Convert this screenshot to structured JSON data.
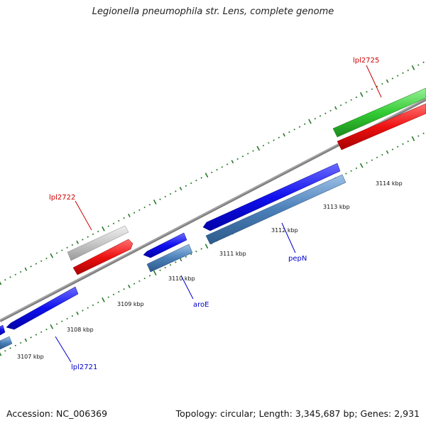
{
  "title": "Legionella pneumophila str. Lens, complete genome",
  "footer": {
    "accession": "Accession: NC_006369",
    "topology": "Topology: circular; Length: 3,345,687 bp; Genes: 2,931"
  },
  "colors": {
    "backbone": "#8a8a8a",
    "forward_cds": "#1010ee",
    "reverse_cds": "#4a7fb8",
    "red_gene": "#ee1111",
    "gray_gene": "#c8c8c8",
    "green_gene": "#33cc33",
    "tick": "#2a7a2a",
    "label_red": "#cc0000",
    "label_blue": "#0000cc"
  },
  "kbp_labels": [
    "3107 kbp",
    "3108 kbp",
    "3109 kbp",
    "3110 kbp",
    "3111 kbp",
    "3112 kbp",
    "3113 kbp",
    "3114 kbp"
  ],
  "gene_labels": [
    {
      "id": "lbl-lpl2725",
      "text": "lpl2725",
      "color": "red"
    },
    {
      "id": "lbl-lpl2722",
      "text": "lpl2722",
      "color": "red"
    },
    {
      "id": "lbl-aroE",
      "text": "aroE",
      "color": "blue"
    },
    {
      "id": "lbl-pepN",
      "text": "pepN",
      "color": "blue"
    },
    {
      "id": "lbl-lpl2721",
      "text": "lpl2721",
      "color": "blue"
    }
  ]
}
